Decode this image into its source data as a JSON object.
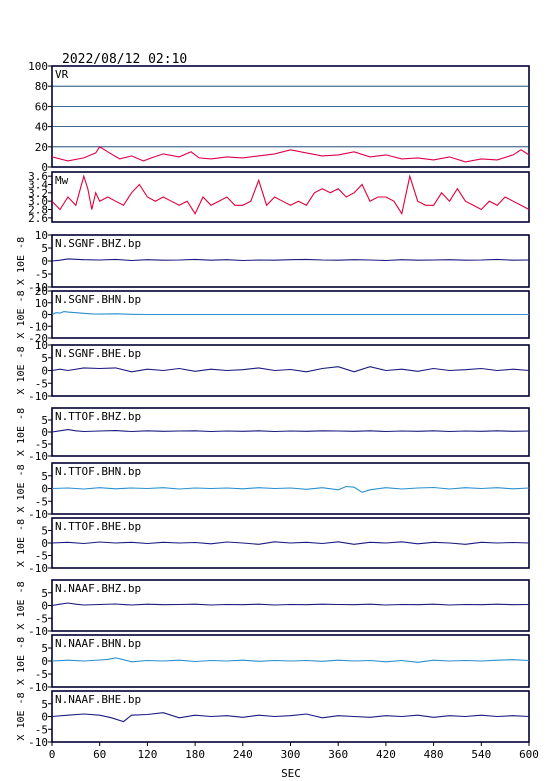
{
  "header": {
    "timestamp": "2022/08/12 02:10"
  },
  "axes": {
    "xlabel": "SEC",
    "ylabel": "X 10E -8"
  },
  "colors": {
    "frame": "#000033",
    "grid": "#003366",
    "vr": "#e0004a",
    "mw": "#e0003c",
    "dark_trace": "#1a1a80",
    "light_trace": "#2a8fd0"
  },
  "chart_data": {
    "type": "line",
    "x_range": [
      0,
      600
    ],
    "x_ticks": [
      "0",
      "60",
      "120",
      "180",
      "240",
      "300",
      "360",
      "420",
      "480",
      "540",
      "600"
    ],
    "panels": [
      {
        "label": "VR",
        "ylim": [
          0,
          100
        ],
        "yticks": [
          "0",
          "20",
          "40",
          "60",
          "80",
          "100"
        ],
        "grid": true,
        "color": "vr",
        "x": [
          0,
          20,
          40,
          55,
          60,
          70,
          85,
          100,
          115,
          125,
          140,
          160,
          175,
          185,
          200,
          220,
          240,
          260,
          280,
          300,
          320,
          340,
          360,
          380,
          400,
          420,
          440,
          460,
          480,
          500,
          520,
          540,
          560,
          580,
          590,
          600
        ],
        "y": [
          10,
          6,
          9,
          14,
          20,
          15,
          8,
          11,
          6,
          9,
          13,
          10,
          15,
          9,
          8,
          10,
          9,
          11,
          13,
          17,
          14,
          11,
          12,
          15,
          10,
          12,
          8,
          9,
          7,
          10,
          5,
          8,
          7,
          12,
          17,
          12
        ]
      },
      {
        "label": "Mw",
        "ylim": [
          2.5,
          3.7
        ],
        "yticks": [
          "2.6",
          "2.8",
          "3.0",
          "3.2",
          "3.4",
          "3.6"
        ],
        "grid": false,
        "color": "mw",
        "x": [
          0,
          10,
          20,
          30,
          40,
          45,
          50,
          55,
          60,
          70,
          80,
          90,
          100,
          110,
          120,
          130,
          140,
          150,
          160,
          170,
          180,
          190,
          200,
          210,
          220,
          230,
          240,
          250,
          260,
          270,
          280,
          290,
          300,
          310,
          320,
          330,
          340,
          350,
          360,
          370,
          380,
          390,
          400,
          410,
          420,
          430,
          440,
          450,
          460,
          470,
          480,
          490,
          500,
          510,
          520,
          530,
          540,
          550,
          560,
          570,
          580,
          590,
          600
        ],
        "y": [
          3.0,
          2.8,
          3.1,
          2.9,
          3.6,
          3.3,
          2.8,
          3.2,
          3.0,
          3.1,
          3.0,
          2.9,
          3.2,
          3.4,
          3.1,
          3.0,
          3.1,
          3.0,
          2.9,
          3.0,
          2.7,
          3.1,
          2.9,
          3.0,
          3.1,
          2.9,
          2.9,
          3.0,
          3.5,
          2.9,
          3.1,
          3.0,
          2.9,
          3.0,
          2.9,
          3.2,
          3.3,
          3.2,
          3.3,
          3.1,
          3.2,
          3.4,
          3.0,
          3.1,
          3.1,
          3.0,
          2.7,
          3.6,
          3.0,
          2.9,
          2.9,
          3.2,
          3.0,
          3.3,
          3.0,
          2.9,
          2.8,
          3.0,
          2.9,
          3.1,
          3.0,
          2.9,
          2.8
        ]
      },
      {
        "label": "N.SGNF.BHZ.bp",
        "ylim": [
          -10,
          10
        ],
        "yticks": [
          "-10",
          "-5",
          "0",
          "5",
          "10"
        ],
        "color": "dark_trace",
        "x": [
          0,
          10,
          20,
          40,
          60,
          80,
          100,
          120,
          140,
          160,
          180,
          200,
          220,
          240,
          260,
          280,
          300,
          320,
          340,
          360,
          380,
          400,
          420,
          440,
          460,
          480,
          500,
          520,
          540,
          560,
          580,
          600
        ],
        "y": [
          0,
          0.3,
          0.8,
          0.5,
          0.4,
          0.6,
          0.2,
          0.5,
          0.3,
          0.4,
          0.6,
          0.3,
          0.5,
          0.2,
          0.4,
          0.3,
          0.5,
          0.6,
          0.4,
          0.3,
          0.5,
          0.4,
          0.2,
          0.5,
          0.3,
          0.4,
          0.5,
          0.3,
          0.4,
          0.6,
          0.3,
          0.4
        ]
      },
      {
        "label": "N.SGNF.BHN.bp",
        "ylim": [
          -20,
          20
        ],
        "yticks": [
          "-20",
          "-10",
          "0",
          "10",
          "20"
        ],
        "color": "light_trace",
        "x": [
          0,
          5,
          10,
          15,
          20,
          30,
          40,
          50,
          60,
          80,
          100,
          120,
          140,
          160,
          200,
          300,
          400,
          500,
          600
        ],
        "y": [
          0,
          1.5,
          1.2,
          2.5,
          2.0,
          1.5,
          1.0,
          0.5,
          0.3,
          0.6,
          0.2,
          0,
          0,
          0,
          0,
          0,
          0,
          0,
          0
        ]
      },
      {
        "label": "N.SGNF.BHE.bp",
        "ylim": [
          -10,
          10
        ],
        "yticks": [
          "-10",
          "-5",
          "0",
          "5",
          "10"
        ],
        "color": "dark_trace",
        "x": [
          0,
          10,
          20,
          40,
          60,
          80,
          100,
          120,
          140,
          160,
          180,
          200,
          220,
          240,
          260,
          280,
          300,
          320,
          340,
          360,
          380,
          400,
          420,
          440,
          460,
          480,
          500,
          520,
          540,
          560,
          580,
          600
        ],
        "y": [
          0,
          0.5,
          0,
          1.0,
          0.8,
          1.0,
          -0.5,
          0.5,
          0,
          0.8,
          -0.3,
          0.5,
          0,
          0.3,
          1.0,
          0,
          0.4,
          -0.5,
          0.8,
          1.5,
          -0.5,
          1.5,
          0,
          0.5,
          -0.3,
          0.8,
          0,
          0.3,
          0.8,
          0,
          0.5,
          0
        ]
      },
      {
        "label": "N.TTOF.BHZ.bp",
        "ylim": [
          -10,
          10
        ],
        "yticks": [
          "-10",
          "-5",
          "0",
          "5"
        ],
        "color": "dark_trace",
        "x": [
          0,
          10,
          20,
          30,
          40,
          60,
          80,
          100,
          120,
          140,
          160,
          180,
          200,
          220,
          240,
          260,
          280,
          300,
          320,
          340,
          360,
          380,
          400,
          420,
          440,
          460,
          480,
          500,
          520,
          540,
          560,
          580,
          600
        ],
        "y": [
          0,
          0.5,
          1.0,
          0.5,
          0.2,
          0.4,
          0.6,
          0.2,
          0.5,
          0.3,
          0.4,
          0.5,
          0.2,
          0.4,
          0.3,
          0.5,
          0.2,
          0.4,
          0.3,
          0.5,
          0.4,
          0.3,
          0.5,
          0.2,
          0.4,
          0.3,
          0.5,
          0.2,
          0.4,
          0.3,
          0.5,
          0.3,
          0.4
        ]
      },
      {
        "label": "N.TTOF.BHN.bp",
        "ylim": [
          -10,
          10
        ],
        "yticks": [
          "-10",
          "-5",
          "0",
          "5"
        ],
        "color": "light_trace",
        "x": [
          0,
          20,
          40,
          60,
          80,
          100,
          120,
          140,
          160,
          180,
          200,
          220,
          240,
          260,
          280,
          300,
          320,
          340,
          360,
          370,
          380,
          390,
          400,
          420,
          440,
          460,
          480,
          500,
          520,
          540,
          560,
          580,
          600
        ],
        "y": [
          0,
          0.2,
          -0.2,
          0.3,
          -0.1,
          0.2,
          0,
          0.3,
          -0.2,
          0.2,
          0,
          0.2,
          -0.1,
          0.3,
          0,
          0.2,
          -0.3,
          0.3,
          -0.5,
          0.8,
          0.5,
          -1.5,
          -0.5,
          0.3,
          -0.2,
          0.2,
          0.4,
          -0.2,
          0.3,
          0,
          0.3,
          -0.1,
          0.2
        ]
      },
      {
        "label": "N.TTOF.BHE.bp",
        "ylim": [
          -10,
          10
        ],
        "yticks": [
          "-10",
          "-5",
          "0",
          "5"
        ],
        "color": "dark_trace",
        "x": [
          0,
          20,
          40,
          60,
          80,
          100,
          120,
          140,
          160,
          180,
          200,
          220,
          240,
          260,
          280,
          300,
          320,
          340,
          360,
          380,
          400,
          420,
          440,
          460,
          480,
          500,
          520,
          540,
          560,
          580,
          600
        ],
        "y": [
          0,
          0.3,
          -0.2,
          0.4,
          0,
          0.3,
          -0.2,
          0.3,
          0,
          0.2,
          -0.3,
          0.4,
          0,
          -0.5,
          0.5,
          0,
          0.3,
          -0.2,
          0.5,
          -0.5,
          0.3,
          0,
          0.5,
          -0.3,
          0.3,
          0,
          -0.5,
          0.3,
          0,
          0.2,
          0
        ]
      },
      {
        "label": "N.NAAF.BHZ.bp",
        "ylim": [
          -10,
          10
        ],
        "yticks": [
          "-10",
          "-5",
          "0",
          "5"
        ],
        "color": "dark_trace",
        "x": [
          0,
          10,
          20,
          30,
          40,
          60,
          80,
          100,
          120,
          140,
          160,
          180,
          200,
          220,
          240,
          260,
          280,
          300,
          320,
          340,
          360,
          380,
          400,
          420,
          440,
          460,
          480,
          500,
          520,
          540,
          560,
          580,
          600
        ],
        "y": [
          0,
          0.5,
          1.0,
          0.5,
          0.2,
          0.4,
          0.6,
          0.2,
          0.5,
          0.3,
          0.4,
          0.5,
          0.2,
          0.4,
          0.3,
          0.5,
          0.2,
          0.4,
          0.3,
          0.5,
          0.4,
          0.3,
          0.5,
          0.2,
          0.4,
          0.3,
          0.5,
          0.2,
          0.4,
          0.3,
          0.5,
          0.3,
          0.4
        ]
      },
      {
        "label": "N.NAAF.BHN.bp",
        "ylim": [
          -10,
          10
        ],
        "yticks": [
          "-10",
          "-5",
          "0",
          "5"
        ],
        "color": "light_trace",
        "x": [
          0,
          20,
          40,
          60,
          70,
          80,
          90,
          100,
          120,
          140,
          160,
          180,
          200,
          220,
          240,
          260,
          280,
          300,
          320,
          340,
          360,
          380,
          400,
          420,
          440,
          460,
          480,
          500,
          520,
          540,
          560,
          580,
          600
        ],
        "y": [
          0,
          0.3,
          0,
          0.4,
          0.6,
          1.2,
          0.5,
          -0.3,
          0.2,
          0,
          0.3,
          -0.2,
          0.2,
          0,
          0.3,
          -0.1,
          0.2,
          0,
          0.2,
          -0.1,
          0.3,
          0,
          0.2,
          -0.3,
          0.2,
          -0.5,
          0.3,
          0,
          0.2,
          0,
          0.3,
          0.5,
          0.2
        ]
      },
      {
        "label": "N.NAAF.BHE.bp",
        "ylim": [
          -10,
          10
        ],
        "yticks": [
          "-10",
          "-5",
          "0",
          "5"
        ],
        "color": "dark_trace",
        "x": [
          0,
          20,
          40,
          60,
          75,
          90,
          100,
          120,
          140,
          160,
          180,
          200,
          220,
          240,
          260,
          280,
          300,
          320,
          340,
          360,
          380,
          400,
          420,
          440,
          460,
          480,
          500,
          520,
          540,
          560,
          580,
          600
        ],
        "y": [
          0,
          0.5,
          1.0,
          0.5,
          -0.5,
          -2.0,
          0.5,
          0.8,
          1.5,
          -0.5,
          0.5,
          0,
          0.3,
          -0.3,
          0.5,
          0,
          0.3,
          1.0,
          -0.5,
          0.3,
          0,
          -0.3,
          0.3,
          0,
          0.5,
          -0.3,
          0.3,
          0,
          0.5,
          0,
          0.3,
          0
        ]
      }
    ]
  }
}
